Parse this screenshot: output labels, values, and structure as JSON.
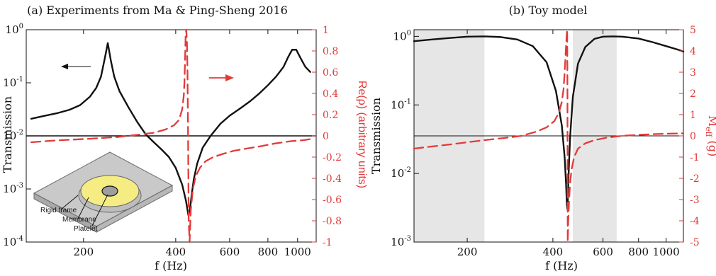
{
  "figure": {
    "panel_a_title": "(a) Experiments from Ma & Ping-Sheng 2016",
    "panel_b_title": "(b) Toy model"
  },
  "colors": {
    "black": "#111111",
    "red": "#e23a3a",
    "shade": "#e6e6e6",
    "inset_frame": "#c8c8c8",
    "inset_membrane": "#f6ee88"
  },
  "chart_data": [
    {
      "type": "line",
      "title": "(a) Experiments from Ma & Ping-Sheng 2016",
      "xlabel": "f (Hz)",
      "ylabel": "Transmission",
      "y2label": "Re(ρ) (arbitrary units)",
      "xscale": "log",
      "yscale": "log",
      "xlim": [
        130,
        1150
      ],
      "ylim": [
        0.0001,
        1
      ],
      "y2lim": [
        -1,
        1
      ],
      "xticks": [
        200,
        400,
        600,
        800,
        1000
      ],
      "xtick_labels": [
        "200",
        "400",
        "600",
        "800",
        "1000"
      ],
      "yticks": [
        0.0001,
        0.001,
        0.01,
        0.1,
        1
      ],
      "ytick_labels": [
        {
          "base": "10",
          "exp": "-4"
        },
        {
          "base": "10",
          "exp": "-3"
        },
        {
          "base": "10",
          "exp": "-2"
        },
        {
          "base": "10",
          "exp": "-1"
        },
        {
          "base": "10",
          "exp": "0"
        }
      ],
      "y2ticks": [
        -1,
        -0.8,
        -0.6,
        -0.4,
        -0.2,
        0,
        0.2,
        0.4,
        0.6,
        0.8,
        1
      ],
      "y2tick_labels": [
        "-1",
        "-0.8",
        "-0.6",
        "-0.4",
        "-0.2",
        "0",
        "0.2",
        "0.4",
        "0.6",
        "0.8",
        "1"
      ],
      "zero_line_y2": 0,
      "series": [
        {
          "axis": "left",
          "style": "solid",
          "color": "#111111",
          "x": [
            135,
            150,
            165,
            180,
            195,
            210,
            220,
            228,
            235,
            240,
            246,
            252,
            262,
            280,
            300,
            320,
            340,
            360,
            380,
            400,
            420,
            432,
            440,
            445,
            450,
            458,
            470,
            490,
            520,
            560,
            600,
            650,
            700,
            750,
            800,
            850,
            900,
            930,
            960,
            990,
            1020,
            1060,
            1100
          ],
          "y": [
            0.021,
            0.024,
            0.027,
            0.031,
            0.038,
            0.055,
            0.08,
            0.13,
            0.3,
            0.56,
            0.25,
            0.13,
            0.07,
            0.035,
            0.018,
            0.0105,
            0.0075,
            0.0055,
            0.004,
            0.0025,
            0.0012,
            0.0006,
            0.00032,
            0.0004,
            0.0007,
            0.0015,
            0.003,
            0.006,
            0.01,
            0.017,
            0.024,
            0.033,
            0.045,
            0.063,
            0.09,
            0.13,
            0.2,
            0.3,
            0.42,
            0.42,
            0.3,
            0.2,
            0.16
          ]
        },
        {
          "axis": "right",
          "style": "dashed",
          "color": "#e23a3a",
          "x": [
            135,
            150,
            170,
            200,
            230,
            260,
            300,
            340,
            370,
            395,
            410,
            420,
            425,
            427,
            429,
            431,
            433,
            435,
            437,
            439,
            441,
            444,
            448,
            455,
            465,
            480,
            500,
            530,
            570,
            620,
            680,
            750,
            850,
            950,
            1050,
            1100
          ],
          "y": [
            -0.06,
            -0.05,
            -0.04,
            -0.03,
            -0.02,
            -0.01,
            0.01,
            0.03,
            0.06,
            0.1,
            0.15,
            0.25,
            0.38,
            0.5,
            0.7,
            0.95,
            1.0,
            0.9,
            0.6,
            0.0,
            -0.8,
            -1.0,
            -0.7,
            -0.5,
            -0.38,
            -0.3,
            -0.24,
            -0.2,
            -0.17,
            -0.14,
            -0.12,
            -0.1,
            -0.07,
            -0.05,
            -0.04,
            -0.03
          ]
        }
      ],
      "annotations": [
        {
          "kind": "arrow",
          "direction": "left",
          "color": "#111111"
        },
        {
          "kind": "arrow",
          "direction": "right",
          "color": "#e23a3a"
        }
      ],
      "inset": {
        "labels": [
          "Rigid frame",
          "Membrane",
          "Platelet"
        ]
      }
    },
    {
      "type": "line",
      "title": "(b) Toy model",
      "xlabel": "f (Hz)",
      "ylabel": "Transmission",
      "y2label": {
        "base": "M",
        "sub": "eff",
        "unit": " (g)"
      },
      "xscale": "log",
      "yscale": "log",
      "xlim": [
        130,
        1150
      ],
      "ylim": [
        0.001,
        1.25
      ],
      "y2lim": [
        -5,
        5
      ],
      "xticks": [
        200,
        400,
        600,
        800,
        1000
      ],
      "xtick_labels": [
        "200",
        "400",
        "600",
        "800",
        "1000"
      ],
      "yticks": [
        0.001,
        0.01,
        0.1,
        1
      ],
      "ytick_labels": [
        {
          "base": "10",
          "exp": "-3"
        },
        {
          "base": "10",
          "exp": "-2"
        },
        {
          "base": "10",
          "exp": "-1"
        },
        {
          "base": "10",
          "exp": "0"
        }
      ],
      "y2ticks": [
        -5,
        -4,
        -3,
        -2,
        -1,
        0,
        1,
        2,
        3,
        4,
        5
      ],
      "y2tick_labels": [
        "-5",
        "-4",
        "-3",
        "-2",
        "-1",
        "0",
        "1",
        "2",
        "3",
        "4",
        "5"
      ],
      "zero_line_y2": 0,
      "shaded_x_ranges": [
        [
          130,
          230
        ],
        [
          470,
          670
        ]
      ],
      "series": [
        {
          "axis": "left",
          "style": "solid",
          "color": "#111111",
          "x": [
            130,
            150,
            175,
            200,
            230,
            260,
            300,
            340,
            380,
            410,
            430,
            440,
            445,
            448,
            450,
            452,
            455,
            460,
            470,
            490,
            520,
            560,
            600,
            650,
            700,
            800,
            900,
            1000,
            1100,
            1150
          ],
          "y": [
            0.85,
            0.9,
            0.95,
            0.99,
            1.0,
            0.98,
            0.9,
            0.72,
            0.42,
            0.16,
            0.05,
            0.017,
            0.007,
            0.0035,
            0.003,
            0.005,
            0.012,
            0.035,
            0.13,
            0.4,
            0.7,
            0.92,
            0.99,
            1.0,
            0.99,
            0.93,
            0.82,
            0.72,
            0.64,
            0.6
          ]
        },
        {
          "axis": "right",
          "style": "dashed",
          "color": "#e23a3a",
          "x": [
            130,
            150,
            175,
            200,
            230,
            270,
            310,
            350,
            380,
            405,
            420,
            430,
            436,
            440,
            444,
            447,
            449,
            450,
            451,
            453,
            456,
            460,
            465,
            475,
            490,
            520,
            560,
            620,
            700,
            800,
            900,
            1000,
            1150
          ],
          "y": [
            -0.6,
            -0.5,
            -0.4,
            -0.3,
            -0.2,
            -0.1,
            0.0,
            0.2,
            0.4,
            0.7,
            1.1,
            1.6,
            2.2,
            3.0,
            4.0,
            4.7,
            5.0,
            2.0,
            -5.0,
            -4.0,
            -3.0,
            -2.2,
            -1.6,
            -1.0,
            -0.6,
            -0.35,
            -0.2,
            -0.08,
            0.0,
            0.05,
            0.08,
            0.1,
            0.12
          ]
        }
      ]
    }
  ]
}
